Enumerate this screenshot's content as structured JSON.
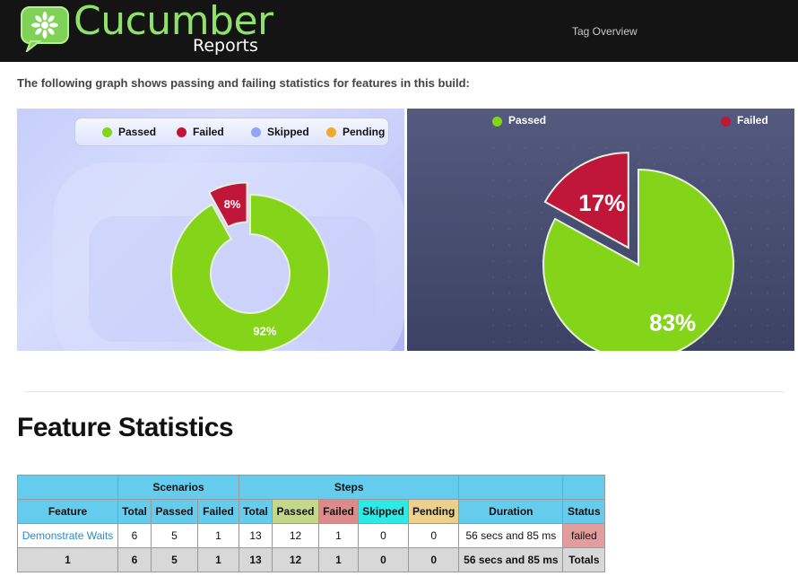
{
  "header": {
    "logo_main": "Cucumber",
    "logo_sub": "Reports",
    "nav_tag_overview": "Tag Overview"
  },
  "intro_text": "The following graph shows passing and failing statistics for features in this build:",
  "colors": {
    "passed": "#84d51a",
    "failed": "#c0163a",
    "skipped": "#92a6f8",
    "pending": "#f1a92b",
    "header_bg": "#141414"
  },
  "chart_data": [
    {
      "type": "pie",
      "variant": "donut",
      "legend": [
        "Passed",
        "Failed",
        "Skipped",
        "Pending"
      ],
      "legend_placement": "top-right",
      "slices": [
        {
          "label": "Passed",
          "value": 92,
          "text": "92%"
        },
        {
          "label": "Failed",
          "value": 8,
          "text": "8%"
        }
      ]
    },
    {
      "type": "pie",
      "legend": [
        "Passed",
        "Failed"
      ],
      "legend_placement": "top",
      "slices": [
        {
          "label": "Passed",
          "value": 83,
          "text": "83%"
        },
        {
          "label": "Failed",
          "value": 17,
          "text": "17%"
        }
      ]
    }
  ],
  "section_title": "Feature Statistics",
  "table": {
    "group_headers": {
      "scenarios": "Scenarios",
      "steps": "Steps"
    },
    "headers": {
      "feature": "Feature",
      "sc_total": "Total",
      "sc_passed": "Passed",
      "sc_failed": "Failed",
      "st_total": "Total",
      "st_passed": "Passed",
      "st_failed": "Failed",
      "st_skipped": "Skipped",
      "st_pending": "Pending",
      "duration": "Duration",
      "status": "Status"
    },
    "rows": [
      {
        "feature": "Demonstrate Waits",
        "sc_total": "6",
        "sc_passed": "5",
        "sc_failed": "1",
        "st_total": "13",
        "st_passed": "12",
        "st_failed": "1",
        "st_skipped": "0",
        "st_pending": "0",
        "duration": "56 secs and 85 ms",
        "status": "failed"
      }
    ],
    "totals": {
      "feature": "1",
      "sc_total": "6",
      "sc_passed": "5",
      "sc_failed": "1",
      "st_total": "13",
      "st_passed": "12",
      "st_failed": "1",
      "st_skipped": "0",
      "st_pending": "0",
      "duration": "56 secs and 85 ms",
      "status": "Totals"
    }
  }
}
